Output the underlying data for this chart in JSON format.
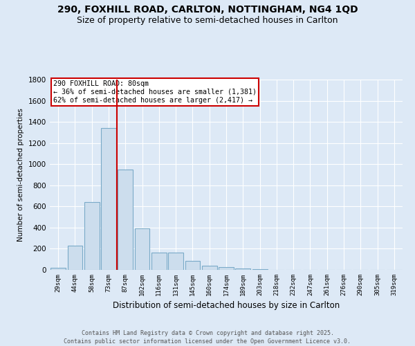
{
  "title1": "290, FOXHILL ROAD, CARLTON, NOTTINGHAM, NG4 1QD",
  "title2": "Size of property relative to semi-detached houses in Carlton",
  "xlabel": "Distribution of semi-detached houses by size in Carlton",
  "ylabel": "Number of semi-detached properties",
  "footer1": "Contains HM Land Registry data © Crown copyright and database right 2025.",
  "footer2": "Contains public sector information licensed under the Open Government Licence v3.0.",
  "bin_labels": [
    "29sqm",
    "44sqm",
    "58sqm",
    "73sqm",
    "87sqm",
    "102sqm",
    "116sqm",
    "131sqm",
    "145sqm",
    "160sqm",
    "174sqm",
    "189sqm",
    "203sqm",
    "218sqm",
    "232sqm",
    "247sqm",
    "261sqm",
    "276sqm",
    "290sqm",
    "305sqm",
    "319sqm"
  ],
  "bar_values": [
    20,
    230,
    640,
    1340,
    950,
    390,
    165,
    165,
    85,
    42,
    25,
    10,
    5,
    3,
    2,
    1,
    1,
    1,
    0,
    0,
    0
  ],
  "bar_color": "#ccdded",
  "bar_edge_color": "#7aaac8",
  "vline_x_idx": 3.5,
  "vline_color": "#cc0000",
  "annotation_text": "290 FOXHILL ROAD: 80sqm\n← 36% of semi-detached houses are smaller (1,381)\n62% of semi-detached houses are larger (2,417) →",
  "annotation_box_color": "#ffffff",
  "annotation_box_edge": "#cc0000",
  "ylim": [
    0,
    1800
  ],
  "yticks": [
    0,
    200,
    400,
    600,
    800,
    1000,
    1200,
    1400,
    1600,
    1800
  ],
  "background_color": "#dde9f6",
  "plot_bg_color": "#dde9f6",
  "grid_color": "#ffffff",
  "title_fontsize": 10,
  "subtitle_fontsize": 9
}
